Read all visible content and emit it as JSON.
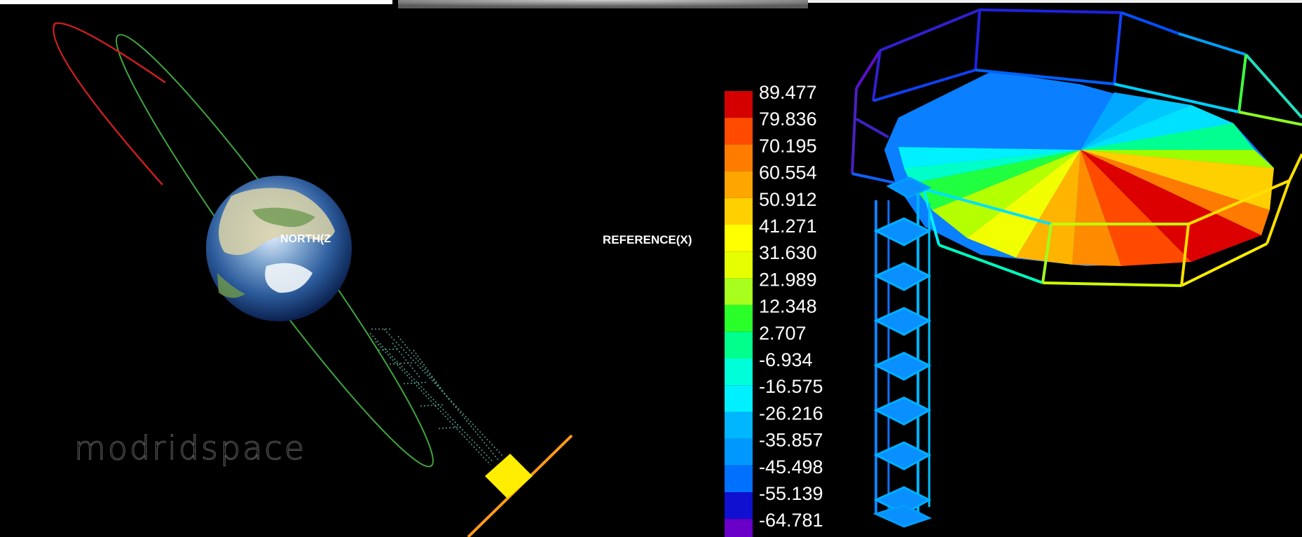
{
  "orbit_panel": {
    "earth_label": "NORTH(Z",
    "watermark": "modridspace"
  },
  "legend": {
    "axis_label": "REFERENCE(X)",
    "entries": [
      {
        "value": "89.477",
        "color": "#d40000"
      },
      {
        "value": "79.836",
        "color": "#ff4a00"
      },
      {
        "value": "70.195",
        "color": "#ff7c00"
      },
      {
        "value": "60.554",
        "color": "#ffa500"
      },
      {
        "value": "50.912",
        "color": "#ffd000"
      },
      {
        "value": "41.271",
        "color": "#ffff00"
      },
      {
        "value": "31.630",
        "color": "#e6ff00"
      },
      {
        "value": "21.989",
        "color": "#a8ff1e"
      },
      {
        "value": "12.348",
        "color": "#2aff2a"
      },
      {
        "value": "2.707",
        "color": "#00ff8c"
      },
      {
        "value": "-6.934",
        "color": "#00ffd9"
      },
      {
        "value": "-16.575",
        "color": "#00f0ff"
      },
      {
        "value": "-26.216",
        "color": "#00b6ff"
      },
      {
        "value": "-35.857",
        "color": "#0098ff"
      },
      {
        "value": "-45.498",
        "color": "#0070ff"
      },
      {
        "value": "-55.139",
        "color": "#1010d0"
      },
      {
        "value": "-64.781",
        "color": "#6a00c8"
      }
    ]
  }
}
